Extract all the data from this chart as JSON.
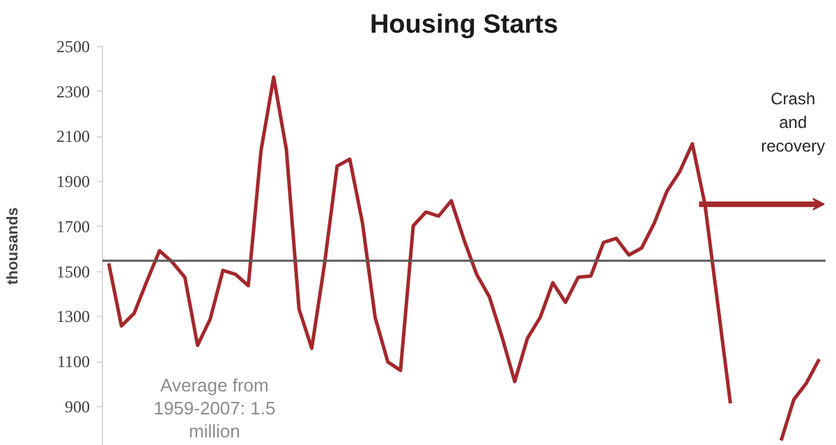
{
  "chart_data": {
    "type": "line",
    "title": "Housing Starts",
    "ylabel": "thousands",
    "categories": [
      null,
      null,
      null,
      null,
      null,
      null,
      null,
      null,
      null,
      null,
      null,
      null,
      null,
      null,
      null,
      null,
      null,
      null,
      null,
      null,
      null,
      null,
      null,
      null,
      null,
      null,
      null,
      null,
      null,
      null,
      null,
      null,
      null,
      null,
      null,
      null,
      null,
      null,
      null,
      null,
      null,
      null,
      null,
      null,
      null,
      null,
      null,
      null,
      null,
      null,
      null,
      null,
      null,
      null,
      null,
      null,
      null
    ],
    "series": [
      {
        "color": "#a3282c",
        "values": [
          1537,
          1259,
          1315,
          1457,
          1593,
          1543,
          1475,
          1173,
          1290,
          1506,
          1488,
          1438,
          2037,
          2364,
          2043,
          1333,
          1160,
          1531,
          1969,
          2000,
          1716,
          1296,
          1099,
          1062,
          1704,
          1765,
          1747,
          1815,
          1642,
          1488,
          1389,
          1210,
          1012,
          1204,
          1296,
          1451,
          1364,
          1475,
          1481,
          1630,
          1648,
          1574,
          1605,
          1716,
          1858,
          1944,
          2068,
          1797,
          1358,
          915,
          null,
          null,
          null,
          null,
          null,
          null,
          null
        ]
      },
      {
        "color": "#a3282c",
        "values": [
          null,
          null,
          null,
          null,
          null,
          null,
          null,
          null,
          null,
          null,
          null,
          null,
          null,
          null,
          null,
          null,
          null,
          null,
          null,
          null,
          null,
          null,
          null,
          null,
          null,
          null,
          null,
          null,
          null,
          null,
          null,
          null,
          null,
          null,
          null,
          null,
          null,
          null,
          null,
          null,
          null,
          null,
          null,
          null,
          null,
          null,
          null,
          null,
          null,
          null,
          null,
          null,
          null,
          750,
          932,
          1006,
          1111
        ]
      }
    ],
    "ylim": [
      727,
      2500
    ],
    "yticks": [
      900,
      1100,
      1300,
      1500,
      1700,
      1900,
      2100,
      2300,
      2500
    ],
    "ref_lines": [
      {
        "axis": "y",
        "value": 1549,
        "color": "#595959"
      }
    ],
    "annotations": [
      "Average from 1959-2007: 1.5 million",
      "Crash and recovery"
    ],
    "grid": false,
    "marker": "none",
    "line_style": "solid"
  }
}
